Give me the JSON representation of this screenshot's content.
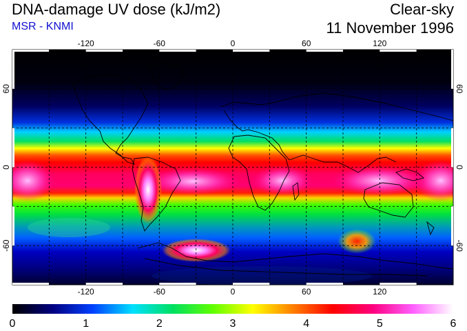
{
  "header": {
    "title": "DNA-damage UV dose (kJ/m2)",
    "subtitle": "MSR - KNMI",
    "condition": "Clear-sky",
    "date": "11 November 1996"
  },
  "map": {
    "lon_ticks": [
      "-120",
      "-60",
      "0",
      "60",
      "120"
    ],
    "lat_ticks": [
      "60",
      "0",
      "-60"
    ],
    "lon_values": [
      -120,
      -60,
      0,
      60,
      120
    ],
    "lat_values": [
      60,
      0,
      -60
    ],
    "lon_range": [
      -180,
      180
    ],
    "lat_range": [
      -90,
      90
    ],
    "grid": "dashed 30°"
  },
  "colorbar": {
    "labels": [
      "0",
      "1",
      "2",
      "3",
      "4",
      "5",
      "6"
    ],
    "min": 0,
    "max": 6,
    "colors": [
      "#000000",
      "#000080",
      "#0040ff",
      "#00e0ff",
      "#00e060",
      "#60ff00",
      "#ffff00",
      "#ff8000",
      "#ff0000",
      "#ff0080",
      "#ff60ff",
      "#ffffff"
    ]
  }
}
